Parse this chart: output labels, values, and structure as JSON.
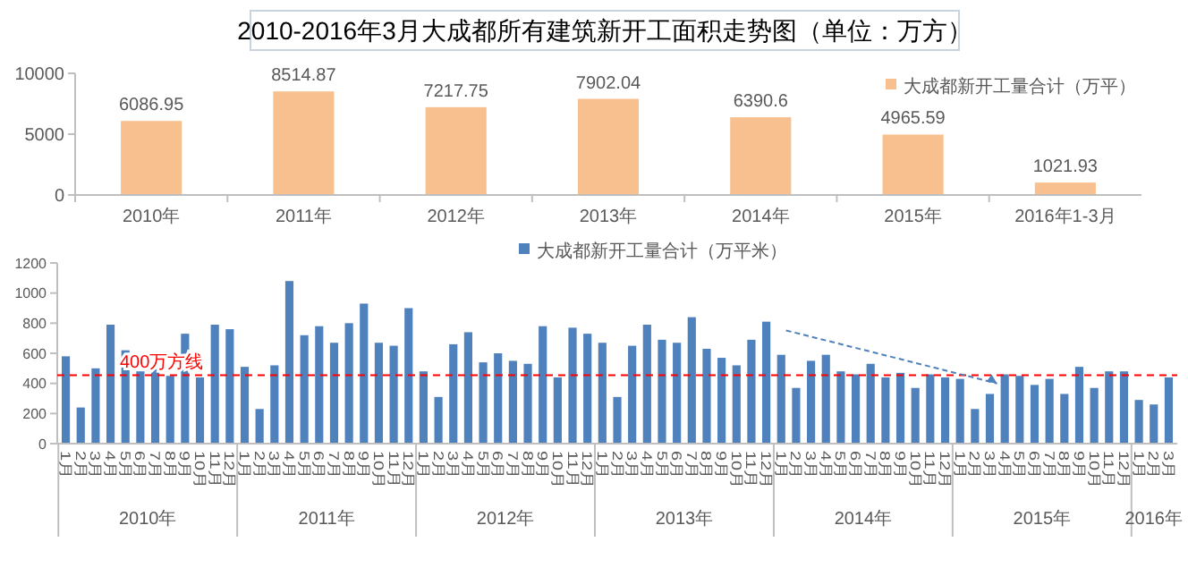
{
  "chart_data": [
    {
      "type": "bar",
      "title": "2010-2016年3月大成都所有建筑新开工面积走势图（单位：万方）",
      "categories": [
        "2010年",
        "2011年",
        "2012年",
        "2013年",
        "2014年",
        "2015年",
        "2016年1-3月"
      ],
      "series": [
        {
          "name": "大成都新开工量合计（万平）",
          "color": "#f9c08f",
          "values": [
            6086.95,
            8514.87,
            7217.75,
            7902.04,
            6390.6,
            4965.59,
            1021.93
          ]
        }
      ],
      "ylim": [
        0,
        10000
      ],
      "yticks": [
        0,
        5000,
        10000
      ],
      "data_labels": true,
      "legend": "top right"
    },
    {
      "type": "bar",
      "categories": [
        "1月",
        "2月",
        "3月",
        "4月",
        "5月",
        "6月",
        "7月",
        "8月",
        "9月",
        "10月",
        "11月",
        "12月",
        "1月",
        "2月",
        "3月",
        "4月",
        "5月",
        "6月",
        "7月",
        "8月",
        "9月",
        "10月",
        "11月",
        "12月",
        "1月",
        "2月",
        "3月",
        "4月",
        "5月",
        "6月",
        "7月",
        "8月",
        "9月",
        "10月",
        "11月",
        "12月",
        "1月",
        "2月",
        "3月",
        "4月",
        "5月",
        "6月",
        "7月",
        "8月",
        "9月",
        "10月",
        "11月",
        "12月",
        "1月",
        "2月",
        "3月",
        "4月",
        "5月",
        "6月",
        "7月",
        "8月",
        "9月",
        "10月",
        "11月",
        "12月",
        "1月",
        "2月",
        "3月",
        "4月",
        "5月",
        "6月",
        "7月",
        "8月",
        "9月",
        "10月",
        "11月",
        "12月",
        "1月",
        "2月",
        "3月"
      ],
      "series": [
        {
          "name": "大成都新开工量合计（万平米）",
          "color": "#4f81bd",
          "values": [
            580,
            240,
            500,
            790,
            620,
            480,
            500,
            450,
            730,
            440,
            790,
            760,
            510,
            230,
            520,
            1080,
            720,
            780,
            670,
            800,
            930,
            670,
            650,
            900,
            480,
            310,
            660,
            740,
            540,
            600,
            550,
            530,
            780,
            440,
            770,
            730,
            670,
            310,
            650,
            790,
            690,
            670,
            840,
            630,
            570,
            520,
            690,
            810,
            590,
            370,
            550,
            590,
            480,
            460,
            530,
            440,
            470,
            370,
            460,
            440,
            430,
            230,
            330,
            460,
            450,
            390,
            430,
            330,
            510,
            370,
            480,
            480,
            290,
            260,
            440
          ]
        }
      ],
      "ylim": [
        0,
        1200
      ],
      "yticks": [
        0,
        200,
        400,
        600,
        800,
        1000,
        1200
      ],
      "legend": "top",
      "ref_lines": [
        {
          "axis": "y",
          "value": 455,
          "label": "400万方线",
          "color": "#ff0000",
          "line_style": "dashed"
        }
      ],
      "annotations": [
        "2010年",
        "2011年",
        "2012年",
        "2013年",
        "2014年",
        "2015年",
        "2016年"
      ]
    }
  ]
}
